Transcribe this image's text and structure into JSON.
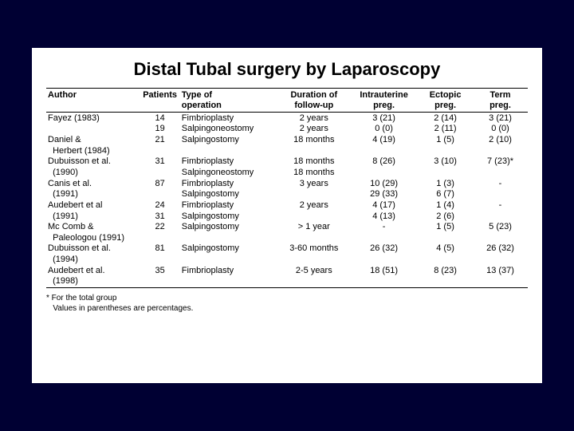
{
  "title": "Distal Tubal surgery by Laparoscopy",
  "columns": {
    "author": "Author",
    "patients": "Patients",
    "operation_l1": "Type of",
    "operation_l2": "operation",
    "duration_l1": "Duration of",
    "duration_l2": "follow-up",
    "intra_l1": "Intrauterine",
    "intra_l2": "preg.",
    "ectopic_l1": "Ectopic",
    "ectopic_l2": "preg.",
    "term_l1": "Term",
    "term_l2": "preg."
  },
  "rows": [
    {
      "author": "Fayez (1983)",
      "patients": "14",
      "operation": "Fimbrioplasty",
      "duration": "2 years",
      "intra": "3 (21)",
      "ectopic": "2 (14)",
      "term": "3 (21)"
    },
    {
      "author": "",
      "patients": "19",
      "operation": "Salpingoneostomy",
      "duration": "2 years",
      "intra": "0 (0)",
      "ectopic": "2 (11)",
      "term": "0 (0)"
    },
    {
      "author": "Daniel &",
      "patients": "21",
      "operation": "Salpingostomy",
      "duration": "18 months",
      "intra": "4 (19)",
      "ectopic": "1 (5)",
      "term": "2 (10)"
    },
    {
      "author": "  Herbert (1984)",
      "patients": "",
      "operation": "",
      "duration": "",
      "intra": "",
      "ectopic": "",
      "term": ""
    },
    {
      "author": "Dubuisson et al.",
      "patients": "31",
      "operation": "Fimbrioplasty",
      "duration": "18 months",
      "intra": "8 (26)",
      "ectopic": "3 (10)",
      "term": "7 (23)*"
    },
    {
      "author": "  (1990)",
      "patients": "",
      "operation": "Salpingoneostomy",
      "duration": "18 months",
      "intra": "",
      "ectopic": "",
      "term": ""
    },
    {
      "author": "Canis et al.",
      "patients": "87",
      "operation": "Fimbrioplasty",
      "duration": "3 years",
      "intra": "10 (29)",
      "ectopic": "1 (3)",
      "term": "-"
    },
    {
      "author": "  (1991)",
      "patients": "",
      "operation": "Salpingostomy",
      "duration": "",
      "intra": "29 (33)",
      "ectopic": "6 (7)",
      "term": ""
    },
    {
      "author": "Audebert et al",
      "patients": "24",
      "operation": "Fimbrioplasty",
      "duration": "2 years",
      "intra": "4 (17)",
      "ectopic": "1 (4)",
      "term": "-"
    },
    {
      "author": "  (1991)",
      "patients": "31",
      "operation": "Salpingostomy",
      "duration": "",
      "intra": "4 (13)",
      "ectopic": "2 (6)",
      "term": ""
    },
    {
      "author": "Mc Comb &",
      "patients": "22",
      "operation": "Salpingostomy",
      "duration": "> 1 year",
      "intra": "-",
      "ectopic": "1 (5)",
      "term": "5 (23)"
    },
    {
      "author": "  Paleologou (1991)",
      "patients": "",
      "operation": "",
      "duration": "",
      "intra": "",
      "ectopic": "",
      "term": ""
    },
    {
      "author": "Dubuisson et al.",
      "patients": "81",
      "operation": "Salpingostomy",
      "duration": "3-60 months",
      "intra": "26 (32)",
      "ectopic": "4 (5)",
      "term": "26 (32)"
    },
    {
      "author": "  (1994)",
      "patients": "",
      "operation": "",
      "duration": "",
      "intra": "",
      "ectopic": "",
      "term": ""
    },
    {
      "author": "Audebert et al.",
      "patients": "35",
      "operation": "Fimbrioplasty",
      "duration": "2-5 years",
      "intra": "18 (51)",
      "ectopic": "8 (23)",
      "term": "13 (37)"
    },
    {
      "author": "  (1998)",
      "patients": "",
      "operation": "",
      "duration": "",
      "intra": "",
      "ectopic": "",
      "term": ""
    }
  ],
  "footnote_l1": "* For the total group",
  "footnote_l2": "   Values in parentheses are percentages."
}
